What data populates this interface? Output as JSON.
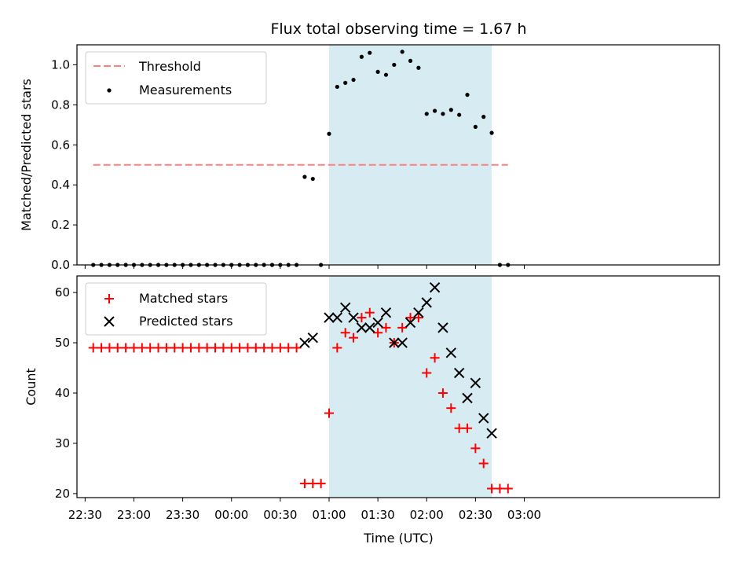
{
  "colors": {
    "shade": "#add8e6",
    "threshold": "#ff7f7f",
    "measurement": "#000000",
    "matched": "#ff0000",
    "predicted": "#000000"
  },
  "chart_data": [
    {
      "type": "scatter",
      "title": "Flux total observing time = 1.67 h",
      "xlabel": "",
      "ylabel": "Matched/Predicted stars",
      "ylim": [
        0,
        1.1
      ],
      "yticks": [
        0.0,
        0.2,
        0.4,
        0.6,
        0.8,
        1.0
      ],
      "ytick_labels": [
        "0.0",
        "0.2",
        "0.4",
        "0.6",
        "0.8",
        "1.0"
      ],
      "x_unit": "time (UTC), minutes after 00:00",
      "xlim": [
        -95,
        300
      ],
      "shaded_region": {
        "from": "01:00",
        "to": "02:40"
      },
      "legend": {
        "location": "upper-left",
        "entries": [
          "Threshold",
          "Measurements"
        ]
      },
      "threshold": {
        "name": "Threshold",
        "y": 0.5,
        "x_from": "22:35",
        "x_to": "02:50"
      },
      "measurements": {
        "name": "Measurements",
        "x": [
          "22:35",
          "22:40",
          "22:45",
          "22:50",
          "22:55",
          "23:00",
          "23:05",
          "23:10",
          "23:15",
          "23:20",
          "23:25",
          "23:30",
          "23:35",
          "23:40",
          "23:45",
          "23:50",
          "23:55",
          "00:00",
          "00:05",
          "00:10",
          "00:15",
          "00:20",
          "00:25",
          "00:30",
          "00:35",
          "00:40",
          "00:45",
          "00:50",
          "00:55",
          "01:00",
          "01:05",
          "01:10",
          "01:15",
          "01:20",
          "01:25",
          "01:30",
          "01:35",
          "01:40",
          "01:45",
          "01:50",
          "01:55",
          "02:00",
          "02:05",
          "02:10",
          "02:15",
          "02:20",
          "02:25",
          "02:30",
          "02:35",
          "02:40",
          "02:45",
          "02:50"
        ],
        "y": [
          0,
          0,
          0,
          0,
          0,
          0,
          0,
          0,
          0,
          0,
          0,
          0,
          0,
          0,
          0,
          0,
          0,
          0,
          0,
          0,
          0,
          0,
          0,
          0,
          0,
          0,
          0.44,
          0.43,
          0,
          0.655,
          0.89,
          0.91,
          0.925,
          1.04,
          1.06,
          0.965,
          0.95,
          1.0,
          1.065,
          1.02,
          0.985,
          0.755,
          0.77,
          0.755,
          0.775,
          0.75,
          0.85,
          0.69,
          0.74,
          0.66,
          0,
          0
        ]
      }
    },
    {
      "type": "scatter",
      "title": "",
      "xlabel": "Time (UTC)",
      "ylabel": "Count",
      "ylim": [
        19.2,
        63.3
      ],
      "yticks": [
        20,
        30,
        40,
        50,
        60
      ],
      "ytick_labels": [
        "20",
        "30",
        "40",
        "50",
        "60"
      ],
      "xticks": [
        "22:30",
        "23:00",
        "23:30",
        "00:00",
        "00:30",
        "01:00",
        "01:30",
        "02:00",
        "02:30",
        "03:00"
      ],
      "shaded_region": {
        "from": "01:00",
        "to": "02:40"
      },
      "legend": {
        "location": "upper-left",
        "entries": [
          "Matched stars",
          "Predicted stars"
        ]
      },
      "series": [
        {
          "name": "Matched stars",
          "marker": "plus",
          "x": [
            "22:35",
            "22:40",
            "22:45",
            "22:50",
            "22:55",
            "23:00",
            "23:05",
            "23:10",
            "23:15",
            "23:20",
            "23:25",
            "23:30",
            "23:35",
            "23:40",
            "23:45",
            "23:50",
            "23:55",
            "00:00",
            "00:05",
            "00:10",
            "00:15",
            "00:20",
            "00:25",
            "00:30",
            "00:35",
            "00:40",
            "00:45",
            "00:50",
            "00:55",
            "01:00",
            "01:05",
            "01:10",
            "01:15",
            "01:20",
            "01:25",
            "01:30",
            "01:35",
            "01:40",
            "01:45",
            "01:50",
            "01:55",
            "02:00",
            "02:05",
            "02:10",
            "02:15",
            "02:20",
            "02:25",
            "02:30",
            "02:35",
            "02:40",
            "02:45",
            "02:50"
          ],
          "values": [
            49,
            49,
            49,
            49,
            49,
            49,
            49,
            49,
            49,
            49,
            49,
            49,
            49,
            49,
            49,
            49,
            49,
            49,
            49,
            49,
            49,
            49,
            49,
            49,
            49,
            49,
            22,
            22,
            22,
            36,
            49,
            52,
            51,
            55,
            56,
            52,
            53,
            50,
            53,
            55,
            55,
            44,
            47,
            40,
            37,
            33,
            33,
            29,
            26,
            21,
            21,
            21
          ]
        },
        {
          "name": "Predicted stars",
          "marker": "x",
          "x": [
            "00:45",
            "00:50",
            "01:00",
            "01:05",
            "01:10",
            "01:15",
            "01:20",
            "01:25",
            "01:30",
            "01:35",
            "01:40",
            "01:45",
            "01:50",
            "01:55",
            "02:00",
            "02:05",
            "02:10",
            "02:15",
            "02:20",
            "02:25",
            "02:30",
            "02:35",
            "02:40"
          ],
          "values": [
            50,
            51,
            55,
            55,
            57,
            55,
            53,
            53,
            54,
            56,
            50,
            50,
            54,
            56,
            58,
            61,
            53,
            48,
            44,
            39,
            42,
            35,
            32
          ]
        }
      ]
    }
  ]
}
